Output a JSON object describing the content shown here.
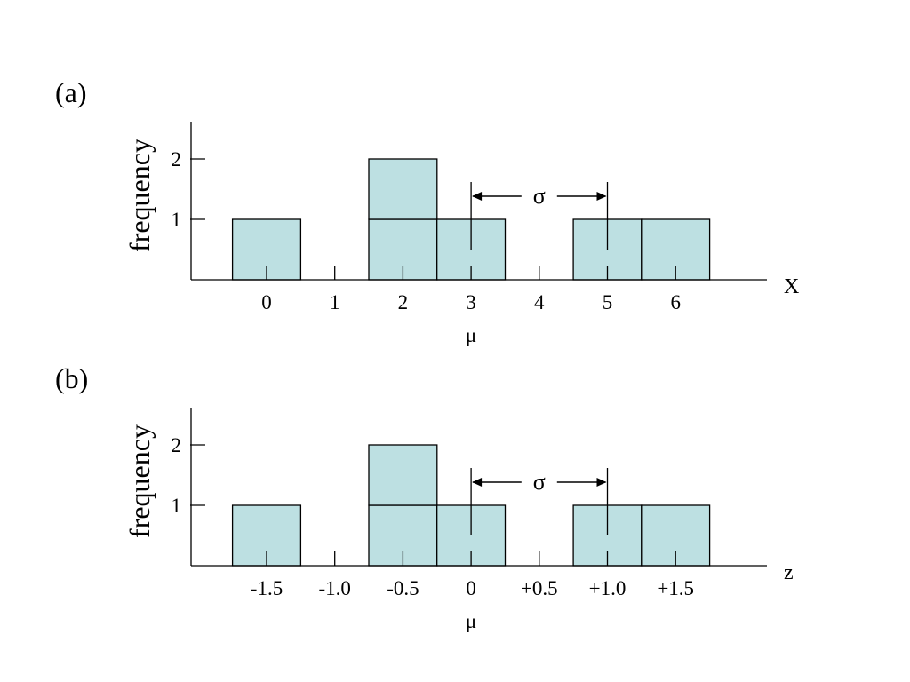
{
  "chart_data": [
    {
      "type": "bar",
      "panel_label": "(a)",
      "xlabel": "X",
      "ylabel": "frequency",
      "x": [
        0,
        1,
        2,
        3,
        4,
        5,
        6
      ],
      "x_tick_labels": [
        "0",
        "1",
        "2",
        "3",
        "4",
        "5",
        "6"
      ],
      "values": [
        1,
        0,
        2,
        1,
        0,
        1,
        1
      ],
      "y_ticks": [
        1,
        2
      ],
      "y_tick_labels": [
        "1",
        "2"
      ],
      "mean_label": "μ",
      "mean_x": 3,
      "sigma_label": "σ",
      "sigma_from": 3,
      "sigma_to": 5,
      "bar_color": "#bde0e2",
      "grid": false,
      "legend": "none"
    },
    {
      "type": "bar",
      "panel_label": "(b)",
      "xlabel": "z",
      "ylabel": "frequency",
      "x": [
        -1.5,
        -1.0,
        -0.5,
        0,
        0.5,
        1.0,
        1.5
      ],
      "x_tick_labels": [
        "-1.5",
        "-1.0",
        "-0.5",
        "0",
        "+0.5",
        "+1.0",
        "+1.5"
      ],
      "values": [
        1,
        0,
        2,
        1,
        0,
        1,
        1
      ],
      "y_ticks": [
        1,
        2
      ],
      "y_tick_labels": [
        "1",
        "2"
      ],
      "mean_label": "μ",
      "mean_x": 0,
      "sigma_label": "σ",
      "sigma_from": 0,
      "sigma_to": 1.0,
      "bar_color": "#bde0e2",
      "grid": false,
      "legend": "none"
    }
  ]
}
